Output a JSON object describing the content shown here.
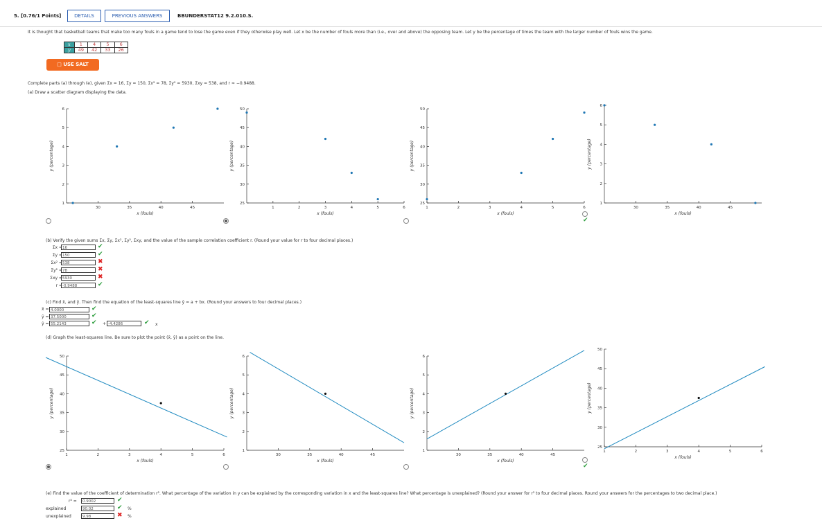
{
  "header": {
    "question": "5. [0.76/1 Points]",
    "details": "DETAILS",
    "previous": "PREVIOUS ANSWERS",
    "code": "BBUNDERSTAT12 9.2.010.S."
  },
  "intro": "It is thought that basketball teams that make too many fouls in a game tend to lose the game even if they otherwise play well. Let x be the number of fouls more than (i.e., over and above) the opposing team. Let y be the percentage of times the team with the larger number of fouls wins the game.",
  "table": {
    "x_label": "x",
    "y_label": "y",
    "x_values": [
      "1",
      "4",
      "5",
      "6"
    ],
    "y_values": [
      "49",
      "42",
      "33",
      "26"
    ]
  },
  "salt": "USE SALT",
  "complete": {
    "prefix": "Complete parts (a) through (e), given Σx = 16, Σy = 150, Σx² = 78, Σy² = 5930, Σxy = 538, and r ≈ −0.9488."
  },
  "part_a": {
    "prompt": "(a) Draw a scatter diagram displaying the data."
  },
  "part_b": {
    "prompt": "(b) Verify the given sums Σx, Σy, Σx², Σy², Σxy, and the value of the sample correlation coefficient r. (Round your value for r to four decimal places.)",
    "rows": [
      {
        "label": "Σx =",
        "value": "16",
        "status": "ok"
      },
      {
        "label": "Σy =",
        "value": "150",
        "status": "ok"
      },
      {
        "label": "Σx² =",
        "value": "538",
        "status": "bad"
      },
      {
        "label": "Σy² =",
        "value": "78",
        "status": "bad"
      },
      {
        "label": "Σxy =",
        "value": "5930",
        "status": "bad"
      },
      {
        "label": "r =",
        "value": "-0.9488",
        "status": "ok"
      }
    ]
  },
  "part_c": {
    "prompt": "(c) Find x̄, and ȳ. Then find the equation of the least-squares line ŷ = a + bx. (Round your answers to four decimal places.)",
    "xbar_label": "x̄ =",
    "xbar": "4.0000",
    "ybar_label": "ȳ =",
    "ybar": "37.5000",
    "yhat_label": "ŷ =",
    "a": "55.2143",
    "plus": "+",
    "b": "-4.4286",
    "x_suffix": "x"
  },
  "part_d": {
    "prompt": "(d) Graph the least-squares line. Be sure to plot the point (x̄, ȳ) as a point on the line."
  },
  "part_e": {
    "prompt": "(e) Find the value of the coefficient of determination r². What percentage of the variation in y can be explained by the corresponding variation in x and the least-squares line? What percentage is unexplained? (Round your answer for r² to four decimal places. Round your answers for the percentages to two decimal place.)",
    "r2_label": "r² =",
    "r2": "0.9002",
    "explained_label": "explained",
    "explained": "90.02",
    "unexplained_label": "unexplained",
    "unexplained": "9.98",
    "pct": "%"
  },
  "graph_labels": {
    "x_fouls": "x (fouls)",
    "y_pct": "y (percentage)"
  },
  "colors": {
    "accent": "#2a5db0",
    "salt": "#f26a21",
    "point": "#1f77b4",
    "line": "#1f8ac0",
    "ok": "#2e9e3e",
    "bad": "#dd2222"
  },
  "chart_data": [
    {
      "type": "scatter",
      "id": "a1",
      "option_status": "none",
      "selected": false,
      "xlabel": "x (fouls)",
      "ylabel": "y (percentage)",
      "xlim": [
        25,
        50
      ],
      "ylim": [
        1,
        6
      ],
      "xticks": [
        30,
        35,
        40,
        45
      ],
      "yticks": [
        1,
        2,
        3,
        4,
        5,
        6
      ],
      "x": [
        26,
        33,
        42,
        49
      ],
      "y": [
        1,
        4,
        5,
        6
      ]
    },
    {
      "type": "scatter",
      "id": "a2",
      "option_status": "none",
      "selected": true,
      "xlabel": "x (fouls)",
      "ylabel": "y (percentage)",
      "xlim": [
        0,
        6
      ],
      "ylim": [
        25,
        50
      ],
      "xticks": [
        1,
        2,
        3,
        4,
        5,
        6
      ],
      "yticks": [
        25,
        30,
        35,
        40,
        45,
        50
      ],
      "x": [
        0,
        3,
        4,
        5
      ],
      "y": [
        49,
        42,
        33,
        26
      ]
    },
    {
      "type": "scatter",
      "id": "a3",
      "option_status": "none",
      "selected": false,
      "xlabel": "x (fouls)",
      "ylabel": "y (percentage)",
      "xlim": [
        1,
        6
      ],
      "ylim": [
        25,
        50
      ],
      "xticks": [
        1,
        2,
        3,
        4,
        5,
        6
      ],
      "yticks": [
        25,
        30,
        35,
        40,
        45,
        50
      ],
      "x": [
        1,
        4,
        5,
        6
      ],
      "y": [
        26,
        33,
        42,
        49
      ]
    },
    {
      "type": "scatter",
      "id": "a4",
      "option_status": "correct",
      "selected": false,
      "xlabel": "x (fouls)",
      "ylabel": "y (percentage)",
      "xlim": [
        25,
        50
      ],
      "ylim": [
        1,
        6
      ],
      "xticks": [
        30,
        35,
        40,
        45
      ],
      "yticks": [
        1,
        2,
        3,
        4,
        5,
        6
      ],
      "x": [
        25,
        33,
        42,
        49
      ],
      "y": [
        6,
        5,
        4,
        1
      ]
    },
    {
      "type": "line",
      "id": "d1",
      "option_status": "none",
      "selected": true,
      "xlabel": "x (fouls)",
      "ylabel": "y (percentage)",
      "xlim": [
        1,
        6
      ],
      "ylim": [
        25,
        50
      ],
      "xticks": [
        1,
        2,
        3,
        4,
        5,
        6
      ],
      "yticks": [
        25,
        30,
        35,
        40,
        45,
        50
      ],
      "line": [
        [
          0.1,
          50.5
        ],
        [
          6.1,
          28.5
        ]
      ],
      "point": [
        4,
        37.5
      ]
    },
    {
      "type": "line",
      "id": "d2",
      "option_status": "none",
      "selected": false,
      "xlabel": "x (fouls)",
      "ylabel": "y (percentage)",
      "xlim": [
        25,
        50
      ],
      "ylim": [
        1,
        6
      ],
      "xticks": [
        30,
        35,
        40,
        45
      ],
      "yticks": [
        1,
        2,
        3,
        4,
        5,
        6
      ],
      "line": [
        [
          25.5,
          6.2
        ],
        [
          50,
          1.4
        ]
      ],
      "point": [
        37.5,
        4
      ]
    },
    {
      "type": "line",
      "id": "d3",
      "option_status": "none",
      "selected": false,
      "xlabel": "x (fouls)",
      "ylabel": "y (percentage)",
      "xlim": [
        25,
        50
      ],
      "ylim": [
        1,
        6
      ],
      "xticks": [
        30,
        35,
        40,
        45
      ],
      "yticks": [
        1,
        2,
        3,
        4,
        5,
        6
      ],
      "line": [
        [
          25,
          1.6
        ],
        [
          50,
          6.3
        ]
      ],
      "point": [
        37.5,
        4
      ]
    },
    {
      "type": "line",
      "id": "d4",
      "option_status": "correct",
      "selected": false,
      "xlabel": "x (fouls)",
      "ylabel": "y (percentage)",
      "xlim": [
        1,
        6
      ],
      "ylim": [
        25,
        50
      ],
      "xticks": [
        1,
        2,
        3,
        4,
        5,
        6
      ],
      "yticks": [
        25,
        30,
        35,
        40,
        45,
        50
      ],
      "line": [
        [
          1,
          24.5
        ],
        [
          6.1,
          45.5
        ]
      ],
      "point": [
        4,
        37.5
      ]
    }
  ]
}
